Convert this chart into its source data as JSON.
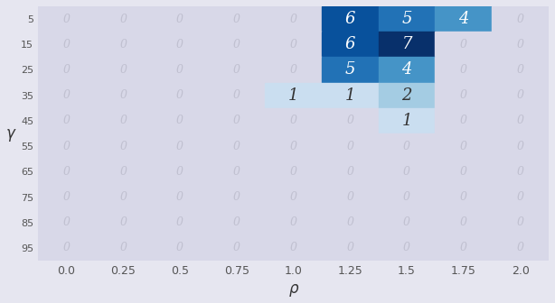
{
  "x_labels": [
    "0.0",
    "0.25",
    "0.5",
    "0.75",
    "1.0",
    "1.25",
    "1.5",
    "1.75",
    "2.0"
  ],
  "y_labels": [
    "5",
    "15",
    "25",
    "35",
    "45",
    "55",
    "65",
    "75",
    "85",
    "95"
  ],
  "x_ticks": [
    0.0,
    0.25,
    0.5,
    0.75,
    1.0,
    1.25,
    1.5,
    1.75,
    2.0
  ],
  "y_ticks": [
    0,
    1,
    2,
    3,
    4,
    5,
    6,
    7,
    8,
    9
  ],
  "matrix": [
    [
      0,
      0,
      0,
      0,
      0,
      6,
      5,
      4,
      0
    ],
    [
      0,
      0,
      0,
      0,
      0,
      6,
      7,
      0,
      0
    ],
    [
      0,
      0,
      0,
      0,
      0,
      5,
      4,
      0,
      0
    ],
    [
      0,
      0,
      0,
      0,
      1,
      1,
      2,
      0,
      0
    ],
    [
      0,
      0,
      0,
      0,
      0,
      0,
      1,
      0,
      0
    ],
    [
      0,
      0,
      0,
      0,
      0,
      0,
      0,
      0,
      0
    ],
    [
      0,
      0,
      0,
      0,
      0,
      0,
      0,
      0,
      0
    ],
    [
      0,
      0,
      0,
      0,
      0,
      0,
      0,
      0,
      0
    ],
    [
      0,
      0,
      0,
      0,
      0,
      0,
      0,
      0,
      0
    ],
    [
      0,
      0,
      0,
      0,
      0,
      0,
      0,
      0,
      0
    ]
  ],
  "xlabel": "ρ",
  "ylabel": "γ",
  "background_color": "#e6e6f0",
  "zero_color": "#d8d8e8",
  "vmax": 7,
  "figsize": [
    6.14,
    3.36
  ],
  "dpi": 100,
  "zero_text_color": "#c0c0d0",
  "nonzero_text_color_dark": "white",
  "nonzero_text_color_light": "#333333",
  "zero_fontsize": 9,
  "nonzero_fontsize": 13
}
